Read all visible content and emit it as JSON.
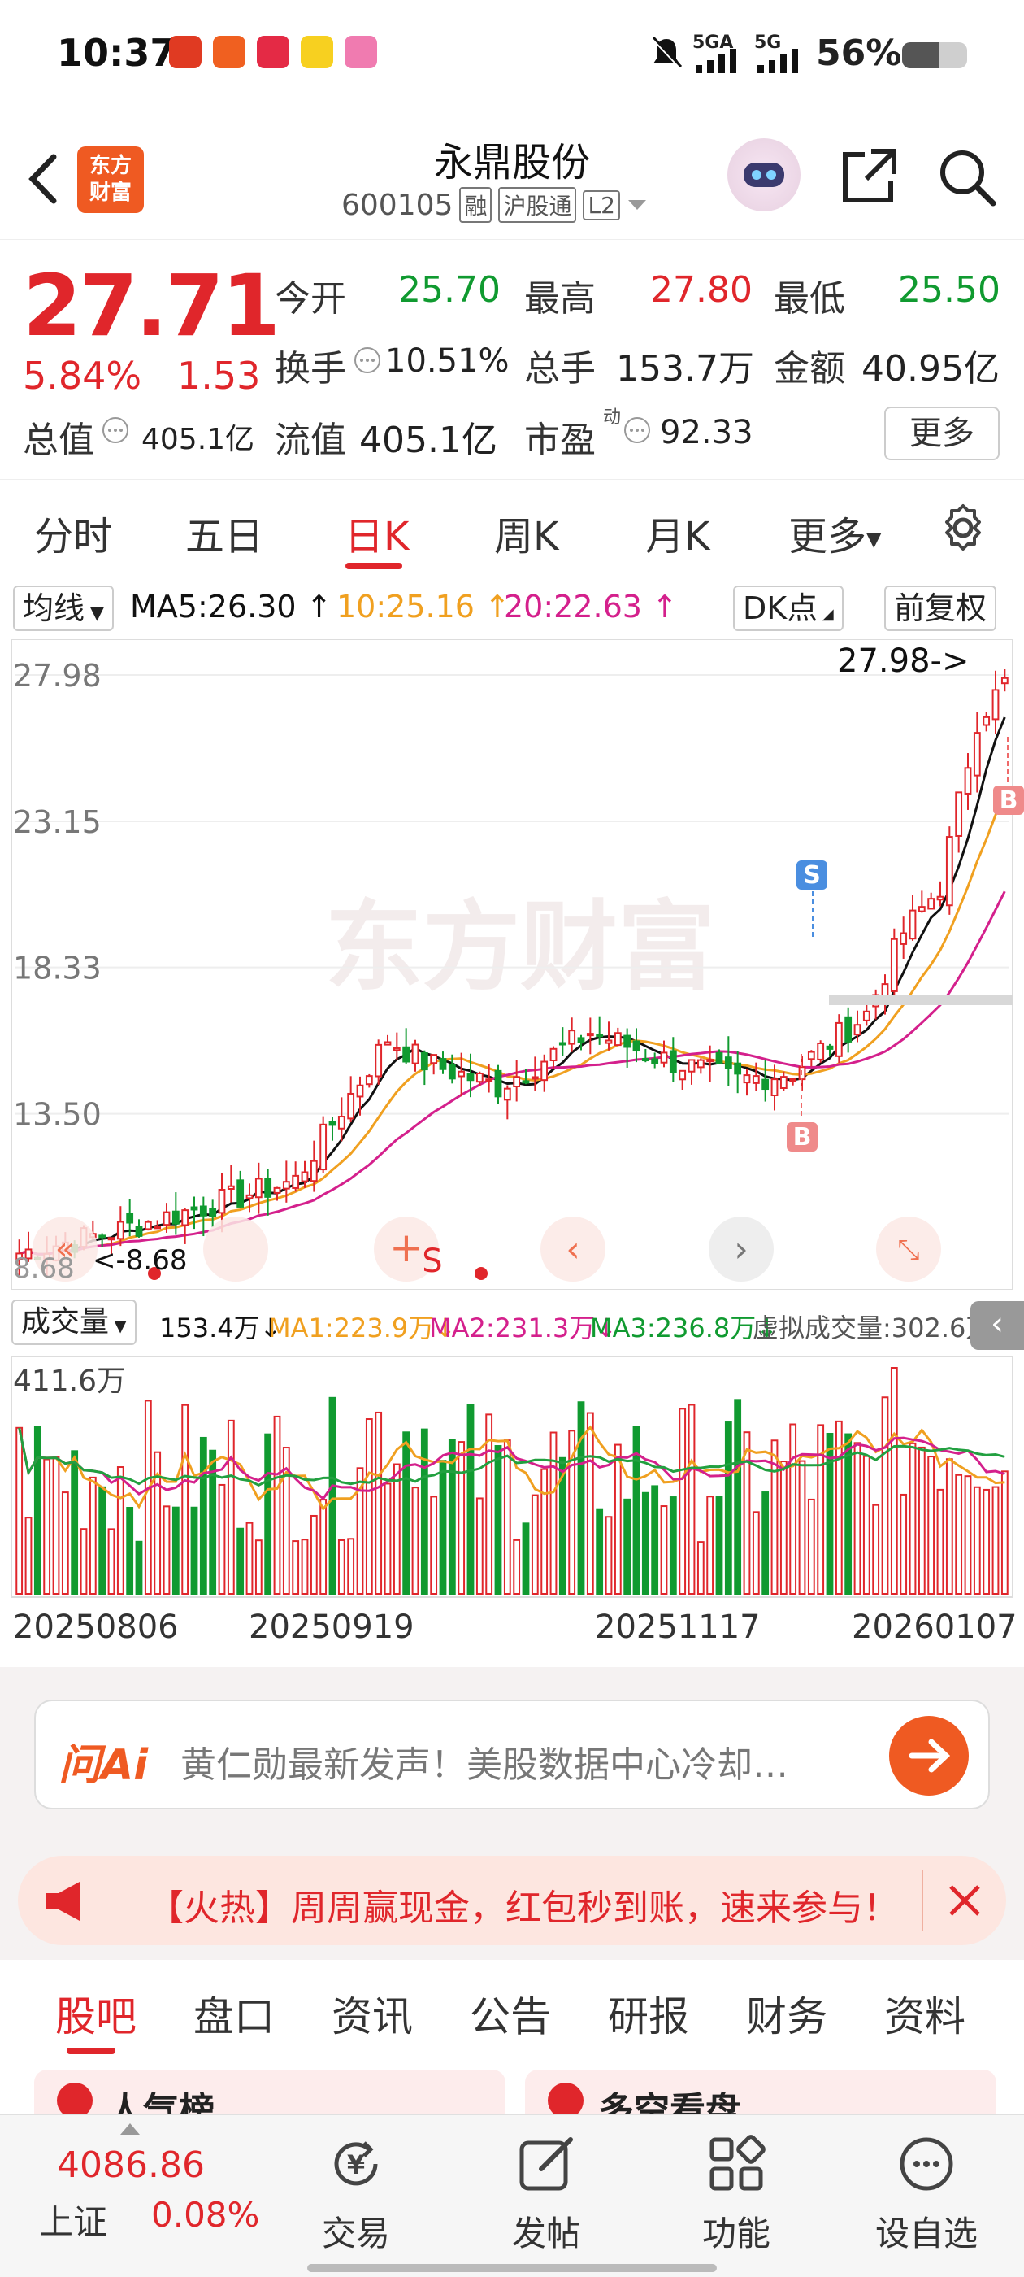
{
  "status": {
    "time": "10:37",
    "net1": "5GA",
    "net2": "5G",
    "battery": "56%"
  },
  "header": {
    "logo_line1": "东方",
    "logo_line2": "财富",
    "title": "永鼎股份",
    "code": "600105",
    "tags": [
      "融",
      "沪股通",
      "L2"
    ]
  },
  "quote": {
    "price": "27.71",
    "change_pct": "5.84%",
    "change": "1.53",
    "open_label": "今开",
    "open": "25.70",
    "high_label": "最高",
    "high": "27.80",
    "low_label": "最低",
    "low": "25.50",
    "turnover_label": "换手",
    "turnover": "10.51%",
    "volume_label": "总手",
    "volume": "153.7万",
    "amount_label": "金额",
    "amount": "40.95亿",
    "mcap_label": "总值",
    "mcap": "405.1亿",
    "float_label": "流值",
    "float": "405.1亿",
    "pe_label": "市盈",
    "pe_sup": "动",
    "pe": "92.33",
    "more": "更多"
  },
  "tabs": [
    "分时",
    "五日",
    "日K",
    "周K",
    "月K",
    "更多"
  ],
  "active_tab": "日K",
  "ma": {
    "btn": "均线",
    "ma5": "MA5:26.30",
    "ma10": "10:25.16",
    "ma20": "20:22.63",
    "dk": "DK点",
    "adjust": "前复权"
  },
  "chart_data": {
    "type": "candlestick",
    "y_ticks": [
      "27.98",
      "23.15",
      "18.33",
      "13.50"
    ],
    "y_range": [
      8.5,
      29
    ],
    "max_label": "27.98->",
    "min_label": "8.68",
    "low_left_label": "8.68",
    "watermark": "东方财富",
    "markers": [
      "S",
      "B",
      "B"
    ],
    "x_labels": [
      "20250806",
      "20250919",
      "20251117",
      "20260107"
    ],
    "colors": {
      "up": "#e0262b",
      "down": "#109a30",
      "ma5": "#111111",
      "ma10": "#f0a020",
      "ma20": "#d4208c",
      "ma3": "#22a040"
    },
    "volume": {
      "label": "成交量",
      "value": "153.4万",
      "ma1": "MA1:223.9万",
      "ma2": "MA2:231.3万",
      "ma3": "MA3:236.8万",
      "virtual": "虚拟成交量:302.6万",
      "max": "411.6万"
    }
  },
  "askai": {
    "logo": "问Ai",
    "text": "黄仁勋最新发声！美股数据中心冷却…"
  },
  "notice": {
    "text": "【火热】周周赢现金，红包秒到账，速来参与！"
  },
  "subtabs": [
    "股吧",
    "盘口",
    "资讯",
    "公告",
    "研报",
    "财务",
    "资料"
  ],
  "peek": {
    "a": "人气榜",
    "b": "多空看盘"
  },
  "bottom": {
    "index_value": "4086.86",
    "index_name": "上证",
    "index_change": "0.08%",
    "items": [
      "交易",
      "发帖",
      "功能",
      "设自选"
    ]
  }
}
